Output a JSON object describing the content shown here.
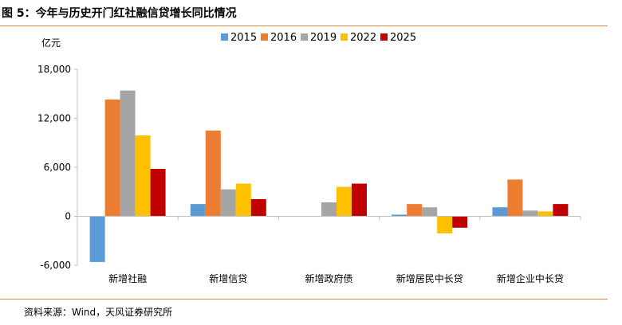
{
  "figure": {
    "title": "图 5：今年与历史开门红社融信贷增长同比情况",
    "source": "资料来源：Wind，天风证券研究所"
  },
  "chart_data": {
    "type": "bar",
    "title": "",
    "xlabel": "",
    "ylabel": "亿元",
    "ylim": [
      -6000,
      18000
    ],
    "yticks": [
      -6000,
      0,
      6000,
      12000,
      18000
    ],
    "ytick_labels": [
      "-6,000",
      "0",
      "6,000",
      "12,000",
      "18,000"
    ],
    "grid": false,
    "legend_position": "top-center",
    "categories": [
      "新增社融",
      "新增信贷",
      "新增政府债",
      "新增居民中长贷",
      "新增企业中长贷"
    ],
    "series": [
      {
        "name": "2015",
        "color": "#5b9bd5",
        "values": [
          -5600,
          1500,
          0,
          200,
          1100
        ]
      },
      {
        "name": "2016",
        "color": "#ed7d31",
        "values": [
          14300,
          10500,
          0,
          1500,
          4500
        ]
      },
      {
        "name": "2019",
        "color": "#a5a5a5",
        "values": [
          15400,
          3300,
          1700,
          1100,
          700
        ]
      },
      {
        "name": "2022",
        "color": "#ffc000",
        "values": [
          9900,
          4000,
          3600,
          -2100,
          600
        ]
      },
      {
        "name": "2025",
        "color": "#c00000",
        "values": [
          5800,
          2100,
          4000,
          -1400,
          1500
        ]
      }
    ]
  }
}
